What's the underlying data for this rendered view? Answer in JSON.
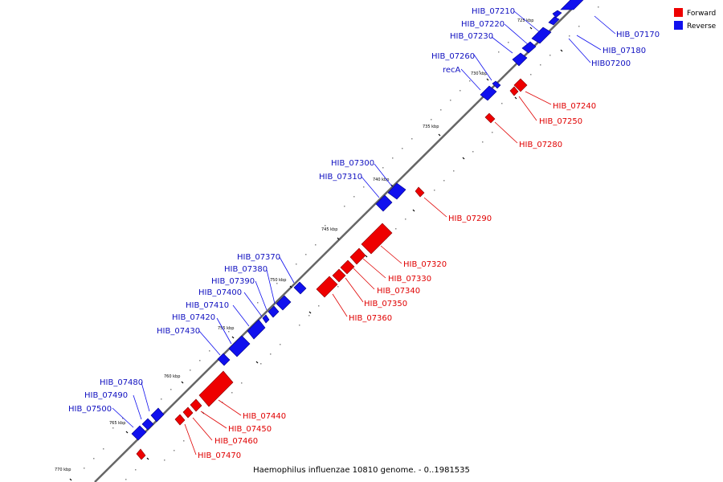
{
  "caption": "Haemophilus influenzae 10810 genome. - 0..1981535",
  "legend": [
    {
      "label": "Forward",
      "color": "#ee0000"
    },
    {
      "label": "Reverse",
      "color": "#1010ee"
    }
  ],
  "colors": {
    "forward": "#ee0000",
    "reverse": "#1010ee",
    "backbone": "#666666"
  },
  "ticks": [
    "725 kbp",
    "730 kbp",
    "735 kbp",
    "740 kbp",
    "745 kbp",
    "750 kbp",
    "755 kbp",
    "760 kbp",
    "765 kbp",
    "770 kbp"
  ],
  "forward_labels": [
    "HIB_07240",
    "HIB_07250",
    "HIB_07280",
    "HIB_07290",
    "HIB_07320",
    "HIB_07330",
    "HIB_07340",
    "HIB_07350",
    "HIB_07360",
    "HIB_07440",
    "HIB_07450",
    "HIB_07460",
    "HIB_07470"
  ],
  "reverse_labels_right": [
    "HIB_07170",
    "HIB_07180",
    "HIB07200"
  ],
  "reverse_labels_left": [
    "HIB_07210",
    "HIB_07220",
    "HIB_07230",
    "HIB_07260",
    "recA",
    "HIB_07300",
    "HIB_07310",
    "HIB_07370",
    "HIB_07380",
    "HIB_07390",
    "HIB_07400",
    "HIB_07410",
    "HIB_07420",
    "HIB_07430",
    "HIB_07480",
    "HIB_07490",
    "HIB_07500"
  ]
}
